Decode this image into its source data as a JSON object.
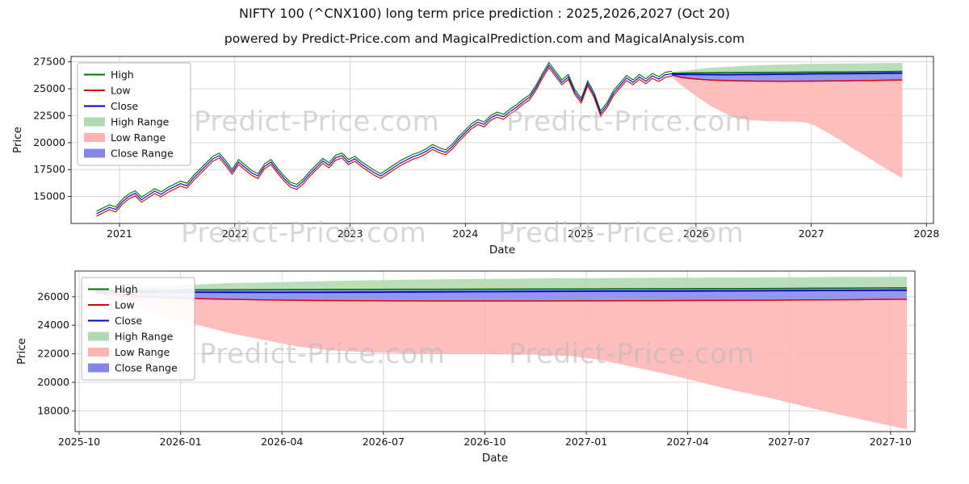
{
  "page": {
    "title": "NIFTY 100 (^CNX100) long term price prediction : 2025,2026,2027 (Oct 20)",
    "subtitle": "powered by Predict-Price.com and MagicalPrediction.com and MagicalAnalysis.com",
    "watermark": "Predict-Price.com"
  },
  "chart_data": {
    "type": "line",
    "title": "NIFTY 100 (^CNX100) long term price prediction : 2025,2026,2027 (Oct 20)",
    "colors": {
      "high_line": "#007000",
      "low_line": "#dd0000",
      "close_line": "#0000cc",
      "high_range_fill": "#b3d9b3",
      "low_range_fill": "#ffb3b3",
      "close_range_fill": "#8585ea",
      "grid": "#d3d3d3",
      "spine": "#2b2b2b",
      "tick_text": "#111111"
    },
    "legend": [
      {
        "label": "High",
        "color": "#007000",
        "swatch": "line"
      },
      {
        "label": "Low",
        "color": "#dd0000",
        "swatch": "line"
      },
      {
        "label": "Close",
        "color": "#0000cc",
        "swatch": "line"
      },
      {
        "label": "High Range",
        "color": "#b3d9b3",
        "swatch": "patch"
      },
      {
        "label": "Low Range",
        "color": "#ffb3b3",
        "swatch": "patch"
      },
      {
        "label": "Close Range",
        "color": "#8585ea",
        "swatch": "patch"
      }
    ],
    "historical": {
      "x_start": 2020.8,
      "x_end": 2025.79,
      "high_offset": 230,
      "low_offset": -230,
      "close": [
        13400,
        13700,
        14000,
        13800,
        14500,
        15000,
        15300,
        14700,
        15100,
        15500,
        15200,
        15600,
        15900,
        16200,
        16000,
        16700,
        17300,
        17900,
        18500,
        18800,
        18100,
        17300,
        18200,
        17700,
        17200,
        16900,
        17800,
        18200,
        17400,
        16700,
        16100,
        15900,
        16400,
        17100,
        17700,
        18300,
        17900,
        18600,
        18800,
        18200,
        18500,
        18000,
        17600,
        17200,
        16900,
        17300,
        17700,
        18100,
        18400,
        18700,
        18900,
        19200,
        19600,
        19300,
        19100,
        19600,
        20300,
        20900,
        21500,
        21900,
        21700,
        22300,
        22600,
        22400,
        22900,
        23300,
        23800,
        24200,
        25100,
        26200,
        27200,
        26400,
        25600,
        26100,
        24700,
        23900,
        25500,
        24400,
        22700,
        23500,
        24600,
        25300,
        26000,
        25600,
        26100,
        25700,
        26200,
        25900,
        26300,
        26400
      ]
    },
    "prediction": {
      "x": [
        2025.79,
        2025.87,
        2025.96,
        2026.04,
        2026.12,
        2026.21,
        2026.29,
        2026.37,
        2026.46,
        2026.54,
        2026.62,
        2026.71,
        2026.79,
        2026.87,
        2026.96,
        2027.04,
        2027.12,
        2027.21,
        2027.29,
        2027.37,
        2027.46,
        2027.54,
        2027.62,
        2027.71,
        2027.79
      ],
      "high": [
        26450,
        26460,
        26470,
        26480,
        26490,
        26500,
        26505,
        26510,
        26515,
        26520,
        26525,
        26530,
        26535,
        26540,
        26545,
        26550,
        26555,
        26560,
        26565,
        26570,
        26580,
        26590,
        26600,
        26610,
        26620
      ],
      "low": [
        26300,
        26080,
        25950,
        25870,
        25820,
        25780,
        25750,
        25730,
        25720,
        25710,
        25705,
        25700,
        25700,
        25705,
        25710,
        25715,
        25720,
        25730,
        25740,
        25750,
        25760,
        25775,
        25790,
        25805,
        25820
      ],
      "close": [
        26360,
        26340,
        26330,
        26320,
        26315,
        26310,
        26310,
        26315,
        26320,
        26330,
        26340,
        26350,
        26360,
        26370,
        26380,
        26390,
        26395,
        26400,
        26405,
        26410,
        26420,
        26430,
        26440,
        26450,
        26460
      ],
      "high_range_upper": [
        26550,
        26650,
        26750,
        26850,
        26950,
        27000,
        27050,
        27100,
        27150,
        27180,
        27210,
        27240,
        27260,
        27280,
        27300,
        27310,
        27320,
        27330,
        27340,
        27350,
        27360,
        27370,
        27380,
        27390,
        27400
      ],
      "close_range_upper": [
        26500,
        26505,
        26510,
        26515,
        26520,
        26525,
        26530,
        26535,
        26540,
        26545,
        26550,
        26552,
        26554,
        26556,
        26558,
        26560,
        26562,
        26564,
        26566,
        26568,
        26570,
        26572,
        26574,
        26576,
        26580
      ],
      "close_range_lower": [
        26150,
        25980,
        25880,
        25820,
        25780,
        25750,
        25720,
        25700,
        25690,
        25680,
        25680,
        25680,
        25690,
        25700,
        25710,
        25720,
        25730,
        25740,
        25750,
        25760,
        25780,
        25800,
        25820,
        25840,
        25860
      ],
      "low_range_lower": [
        26100,
        25350,
        24650,
        24050,
        23450,
        22950,
        22500,
        22250,
        22100,
        22050,
        22000,
        21980,
        21960,
        21940,
        21850,
        21550,
        21050,
        20500,
        19950,
        19400,
        18850,
        18300,
        17750,
        17200,
        16700
      ]
    },
    "views": [
      {
        "name": "full-history",
        "xlabel": "Date",
        "ylabel": "Price",
        "xlim": [
          2020.58,
          2028.06
        ],
        "ylim": [
          12500,
          28000
        ],
        "show_historical": true,
        "xticks": [
          {
            "v": 2021,
            "label": "2021"
          },
          {
            "v": 2022,
            "label": "2022"
          },
          {
            "v": 2023,
            "label": "2023"
          },
          {
            "v": 2024,
            "label": "2024"
          },
          {
            "v": 2025,
            "label": "2025"
          },
          {
            "v": 2026,
            "label": "2026"
          },
          {
            "v": 2027,
            "label": "2027"
          },
          {
            "v": 2028,
            "label": "2028"
          }
        ],
        "yticks": [
          {
            "v": 15000,
            "label": "15000"
          },
          {
            "v": 17500,
            "label": "17500"
          },
          {
            "v": 20000,
            "label": "20000"
          },
          {
            "v": 22500,
            "label": "22500"
          },
          {
            "v": 25000,
            "label": "25000"
          },
          {
            "v": 27500,
            "label": "27500"
          }
        ]
      },
      {
        "name": "prediction-zoom",
        "xlabel": "Date",
        "ylabel": "Price",
        "xlim": [
          2025.74,
          2027.81
        ],
        "ylim": [
          16550,
          27800
        ],
        "show_historical": false,
        "xticks": [
          {
            "v": 2025.75,
            "label": "2025-10"
          },
          {
            "v": 2026.0,
            "label": "2026-01"
          },
          {
            "v": 2026.25,
            "label": "2026-04"
          },
          {
            "v": 2026.5,
            "label": "2026-07"
          },
          {
            "v": 2026.75,
            "label": "2026-10"
          },
          {
            "v": 2027.0,
            "label": "2027-01"
          },
          {
            "v": 2027.25,
            "label": "2027-04"
          },
          {
            "v": 2027.5,
            "label": "2027-07"
          },
          {
            "v": 2027.75,
            "label": "2027-10"
          }
        ],
        "yticks": [
          {
            "v": 18000,
            "label": "18000"
          },
          {
            "v": 20000,
            "label": "20000"
          },
          {
            "v": 22000,
            "label": "22000"
          },
          {
            "v": 24000,
            "label": "24000"
          },
          {
            "v": 26000,
            "label": "26000"
          }
        ]
      }
    ]
  }
}
